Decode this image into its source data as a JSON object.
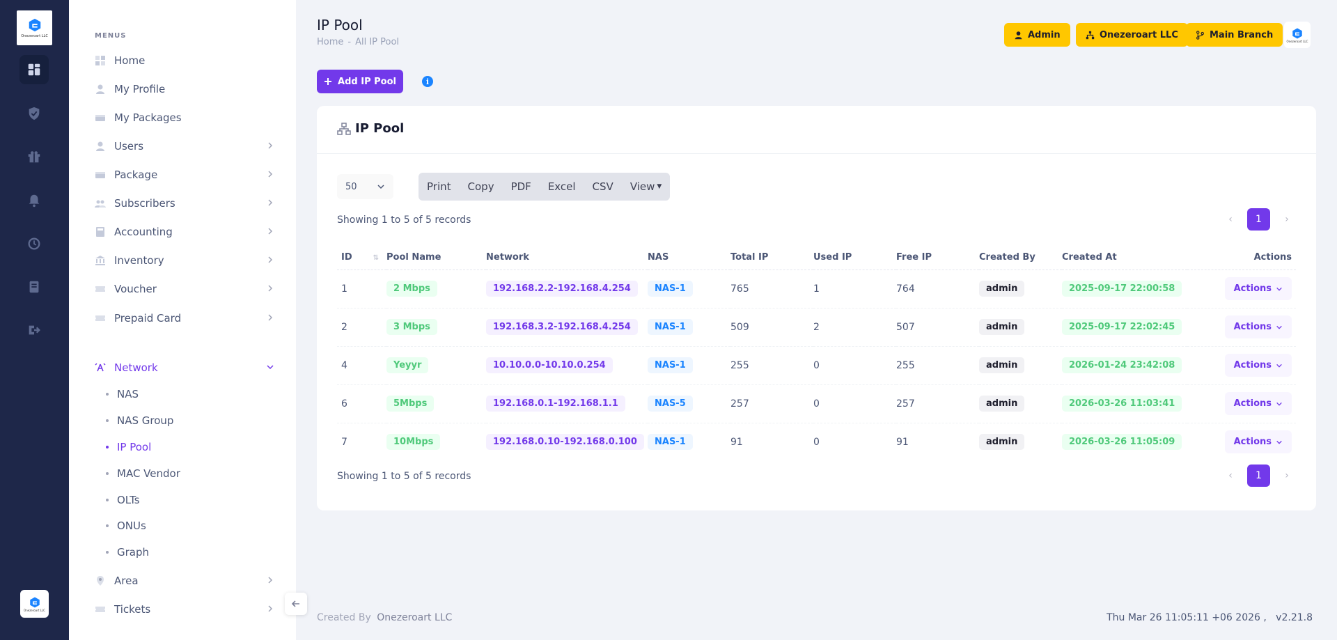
{
  "brand": {
    "logo_caption": "Onezeroart LLC"
  },
  "sidebar": {
    "menus_title": "MENUS",
    "items": [
      {
        "label": "Home"
      },
      {
        "label": "My Profile"
      },
      {
        "label": "My Packages"
      },
      {
        "label": "Users"
      },
      {
        "label": "Package"
      },
      {
        "label": "Subscribers"
      },
      {
        "label": "Accounting"
      },
      {
        "label": "Inventory"
      },
      {
        "label": "Voucher"
      },
      {
        "label": "Prepaid Card"
      },
      {
        "label": "Network"
      },
      {
        "label": "Area"
      },
      {
        "label": "Tickets"
      }
    ],
    "network_sub": [
      {
        "label": "NAS"
      },
      {
        "label": "NAS Group"
      },
      {
        "label": "IP Pool"
      },
      {
        "label": "MAC Vendor"
      },
      {
        "label": "OLTs"
      },
      {
        "label": "ONUs"
      },
      {
        "label": "Graph"
      }
    ]
  },
  "header": {
    "title": "IP Pool",
    "breadcrumb": [
      "Home",
      "-",
      "All IP Pool"
    ],
    "admin_label": "Admin",
    "company_label": "Onezeroart LLC",
    "branch_label": "Main Branch"
  },
  "toolbar": {
    "add_label": "Add IP Pool",
    "info_glyph": "i"
  },
  "card": {
    "title": "IP Pool",
    "page_length": "50",
    "export_buttons": [
      "Print",
      "Copy",
      "PDF",
      "Excel",
      "CSV",
      "View"
    ],
    "records_info": "Showing 1 to 5 of 5 records",
    "current_page": "1"
  },
  "table": {
    "columns": [
      "ID",
      "Pool Name",
      "Network",
      "NAS",
      "Total IP",
      "Used IP",
      "Free IP",
      "Created By",
      "Created At",
      "Actions"
    ],
    "rows": [
      {
        "id": "1",
        "pool": "2 Mbps",
        "network": "192.168.2.2-192.168.4.254",
        "nas": "NAS-1",
        "total": "765",
        "used": "1",
        "free": "764",
        "by": "admin",
        "at": "2025-09-17 22:00:58",
        "action": "Actions"
      },
      {
        "id": "2",
        "pool": "3 Mbps",
        "network": "192.168.3.2-192.168.4.254",
        "nas": "NAS-1",
        "total": "509",
        "used": "2",
        "free": "507",
        "by": "admin",
        "at": "2025-09-17 22:02:45",
        "action": "Actions"
      },
      {
        "id": "4",
        "pool": "Yeyyr",
        "network": "10.10.0.0-10.10.0.254",
        "nas": "NAS-1",
        "total": "255",
        "used": "0",
        "free": "255",
        "by": "admin",
        "at": "2026-01-24 23:42:08",
        "action": "Actions"
      },
      {
        "id": "6",
        "pool": "5Mbps",
        "network": "192.168.0.1-192.168.1.1",
        "nas": "NAS-5",
        "total": "257",
        "used": "0",
        "free": "257",
        "by": "admin",
        "at": "2026-03-26 11:03:41",
        "action": "Actions"
      },
      {
        "id": "7",
        "pool": "10Mbps",
        "network": "192.168.0.10-192.168.0.100",
        "nas": "NAS-1",
        "total": "91",
        "used": "0",
        "free": "91",
        "by": "admin",
        "at": "2026-03-26 11:05:09",
        "action": "Actions"
      }
    ]
  },
  "footer": {
    "created_by_label": "Created By",
    "company": "Onezeroart LLC",
    "datetime_version": "Thu Mar 26 11:05:11 +06 2026 ,   v2.21.8"
  },
  "colors": {
    "accent": "#7239ea",
    "sidebar_bg": "#1e2749",
    "warning": "#ffc700"
  }
}
